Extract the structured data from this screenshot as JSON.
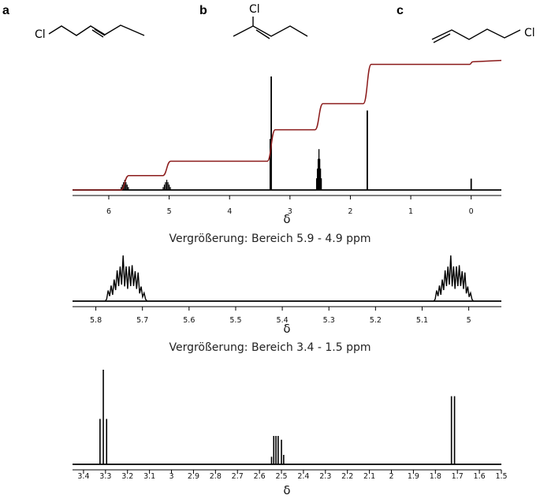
{
  "molecules": [
    {
      "label": "a",
      "atom": "Cl"
    },
    {
      "label": "b",
      "atom": "Cl"
    },
    {
      "label": "c",
      "atom": "Cl"
    }
  ],
  "zoom_titles": [
    "Vergrößerung: Bereich 5.9 - 4.9 ppm",
    "Vergrößerung: Bereich 3.4 - 1.5 ppm"
  ],
  "colors": {
    "spectrum": "#000000",
    "integral": "#8b1a1a"
  },
  "chart_data": [
    {
      "type": "line",
      "title": "",
      "xlabel": "δ",
      "ylabel": "",
      "xlim": [
        6.6,
        -0.5
      ],
      "x_reversed": true,
      "xticks": [
        6,
        5,
        4,
        3,
        2,
        1,
        0
      ],
      "xtick_labels": [
        "6",
        "5",
        "4",
        "3",
        "2",
        "1",
        "0"
      ],
      "peaks": [
        {
          "ppm": 5.735,
          "height": 0.09,
          "multiplet": true
        },
        {
          "ppm": 5.04,
          "height": 0.09,
          "multiplet": true
        },
        {
          "ppm": 3.31,
          "height": 1.0,
          "multiplet": false
        },
        {
          "ppm": 2.52,
          "height": 0.36,
          "multiplet": true
        },
        {
          "ppm": 1.72,
          "height": 0.7,
          "multiplet": false
        },
        {
          "ppm": 0.0,
          "height": 0.1,
          "multiplet": false
        }
      ],
      "integral_steps": [
        {
          "ppm": 5.735,
          "level": 0.11
        },
        {
          "ppm": 5.04,
          "level": 0.22
        },
        {
          "ppm": 3.31,
          "level": 0.46
        },
        {
          "ppm": 2.52,
          "level": 0.66
        },
        {
          "ppm": 1.72,
          "level": 0.96
        },
        {
          "ppm": 0.0,
          "level": 0.98
        }
      ]
    },
    {
      "type": "line",
      "title": "Vergrößerung: Bereich 5.9 - 4.9 ppm",
      "xlabel": "δ",
      "ylabel": "",
      "xlim": [
        5.85,
        4.93
      ],
      "x_reversed": true,
      "xticks": [
        5.8,
        5.7,
        5.6,
        5.5,
        5.4,
        5.3,
        5.2,
        5.1,
        5.0
      ],
      "xtick_labels": [
        "5.8",
        "5.7",
        "5.6",
        "5.5",
        "5.4",
        "5.3",
        "5.2",
        "5.1",
        "5"
      ],
      "multiplets": [
        {
          "center": 5.735,
          "span": [
            5.69,
            5.78
          ],
          "height": 1.0
        },
        {
          "center": 5.035,
          "span": [
            4.99,
            5.075
          ],
          "height": 1.0
        }
      ]
    },
    {
      "type": "line",
      "title": "Vergrößerung: Bereich 3.4 - 1.5 ppm",
      "xlabel": "δ",
      "ylabel": "",
      "xlim": [
        3.45,
        1.5
      ],
      "x_reversed": true,
      "xticks": [
        3.4,
        3.3,
        3.2,
        3.1,
        3.0,
        2.9,
        2.8,
        2.7,
        2.6,
        2.5,
        2.4,
        2.3,
        2.2,
        2.1,
        2.0,
        1.9,
        1.8,
        1.7,
        1.6,
        1.5
      ],
      "xtick_labels": [
        "3.4",
        "3.3",
        "3.2",
        "3.1",
        "3",
        "2.9",
        "2.8",
        "2.7",
        "2.6",
        "2.5",
        "2.4",
        "2.3",
        "2.2",
        "2.1",
        "2",
        "1.9",
        "1.8",
        "1.7",
        "1.6",
        "1.5"
      ],
      "lines": [
        {
          "ppm": 3.325,
          "height": 0.48
        },
        {
          "ppm": 3.31,
          "height": 1.0
        },
        {
          "ppm": 3.295,
          "height": 0.48
        },
        {
          "ppm": 2.545,
          "height": 0.08
        },
        {
          "ppm": 2.535,
          "height": 0.3
        },
        {
          "ppm": 2.525,
          "height": 0.3
        },
        {
          "ppm": 2.515,
          "height": 0.3
        },
        {
          "ppm": 2.5,
          "height": 0.26
        },
        {
          "ppm": 2.49,
          "height": 0.1
        },
        {
          "ppm": 1.727,
          "height": 0.72
        },
        {
          "ppm": 1.713,
          "height": 0.72
        }
      ]
    }
  ]
}
